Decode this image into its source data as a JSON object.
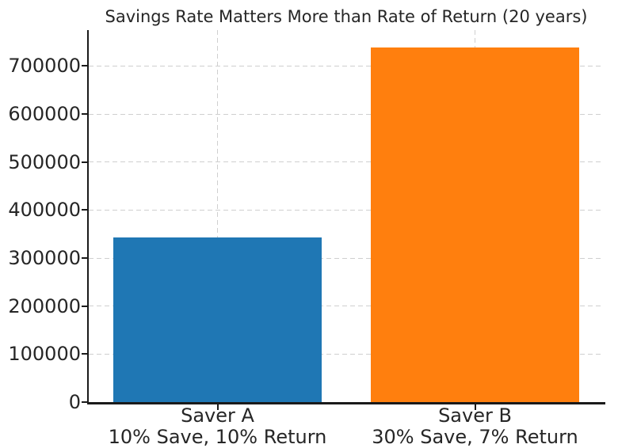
{
  "figure": {
    "background": "#ffffff",
    "text_color": "#262626",
    "axis_color": "#1a1a1a"
  },
  "chart_data": {
    "type": "bar",
    "title": "Savings Rate Matters More than Rate of Return (20 years)",
    "categories": [
      "Saver A",
      "Saver B"
    ],
    "category_sublabels": [
      "10% Save, 10% Return",
      "30% Save, 7% Return"
    ],
    "values": [
      343650,
      737919
    ],
    "bar_colors": [
      "#1f77b4",
      "#ff7f0e"
    ],
    "xlabel": "",
    "ylabel": "",
    "ylim": [
      0,
      775000
    ],
    "yticks": [
      0,
      100000,
      200000,
      300000,
      400000,
      500000,
      600000,
      700000
    ],
    "bar_width_fraction": 0.81,
    "grid": {
      "visible": true,
      "linestyle": "dashed",
      "color": "#cfcfcf",
      "axis": "both"
    },
    "legend": null
  }
}
